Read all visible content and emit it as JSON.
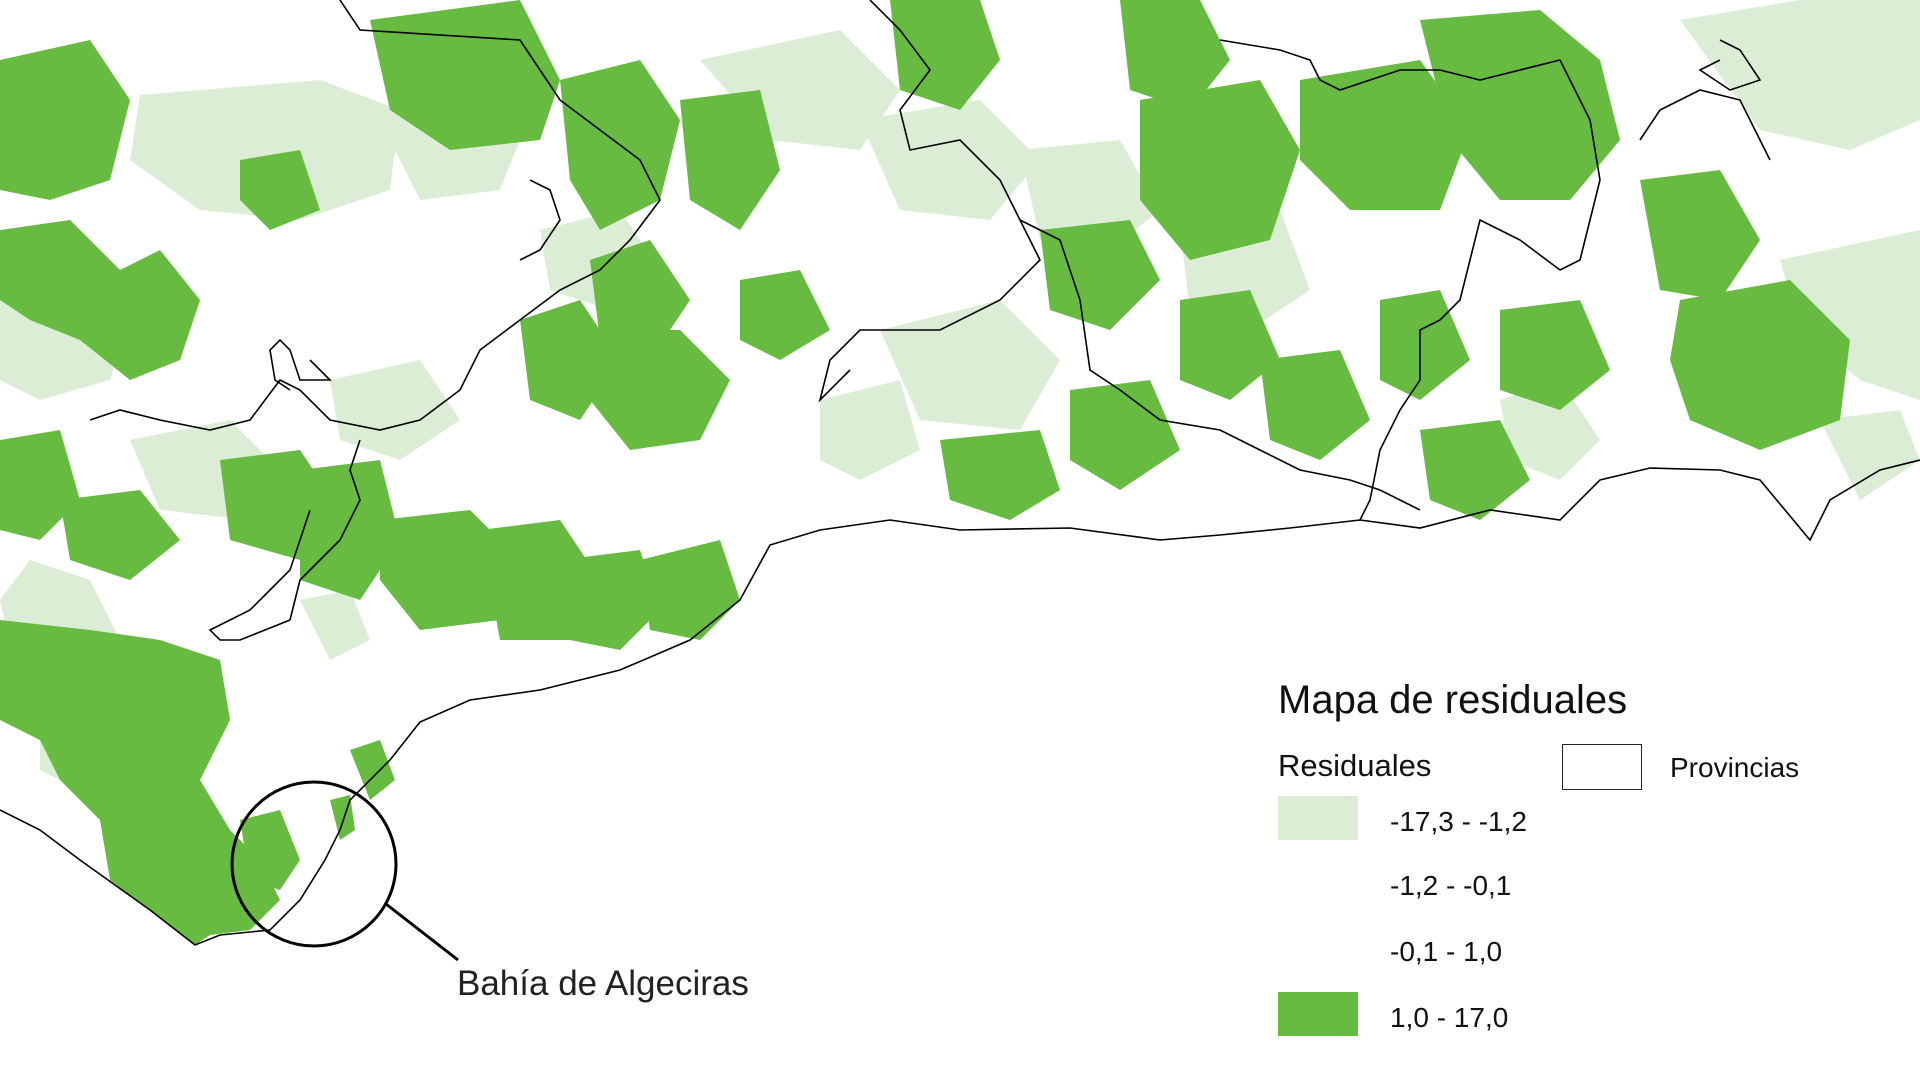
{
  "legend": {
    "title": "Mapa de residuales",
    "subtitle": "Residuales",
    "classes": [
      {
        "label": "-17,3 -  -1,2",
        "color": "#dbeed5"
      },
      {
        "label": "-1,2 -  -0,1",
        "color": "#ffffff"
      },
      {
        "label": "-0,1 - 1,0",
        "color": "#ffffff"
      },
      {
        "label": "1,0 - 17,0",
        "color": "#66bb40"
      }
    ],
    "boundary_label": "Provincias"
  },
  "callout": {
    "label": "Bahía de Algeciras"
  },
  "colors": {
    "high": "#66bb40",
    "low": "#dbeed5",
    "boundary": "#000000",
    "coast": "#000000"
  }
}
